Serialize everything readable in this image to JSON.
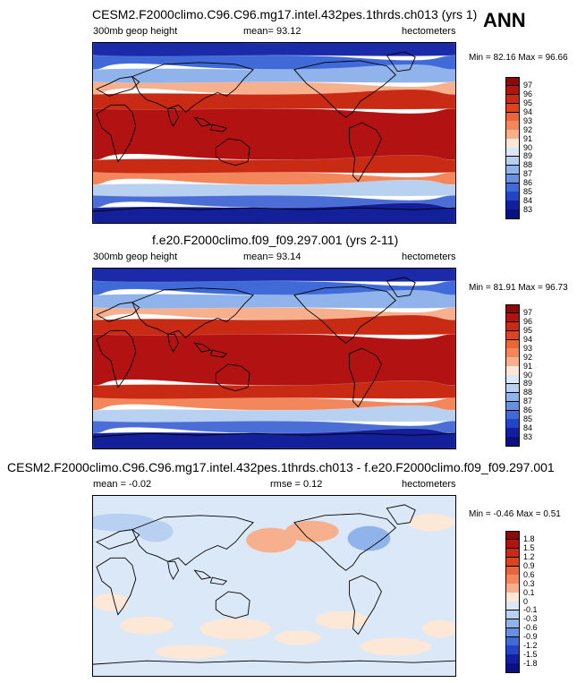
{
  "season": "ANN",
  "panels": [
    {
      "title": "CESM2.F2000climo.C96.C96.mg17.intel.432pes.1thrds.ch013 (yrs 1)",
      "left_label": "300mb geop height",
      "center_label": "mean=  93.12",
      "right_label": "hectometers",
      "minmax": "Min =  82.16 Max =  96.66",
      "colorbar_labels": [
        "97",
        "96",
        "95",
        "94",
        "93",
        "92",
        "91",
        "90",
        "89",
        "88",
        "87",
        "86",
        "85",
        "84",
        "83"
      ],
      "colorbar_colors": [
        "#8c0a0a",
        "#b21212",
        "#c82a14",
        "#dc4420",
        "#ea6638",
        "#f3865a",
        "#f7b08e",
        "#fde7d6",
        "#dbe8f7",
        "#b8d1f1",
        "#8fb3ea",
        "#6790e0",
        "#3f6ad8",
        "#2344c6",
        "#1020a0",
        "#0a1080"
      ],
      "map_colors": {
        "polar_n": "#1a2aa8",
        "high_n": "#3f6ad8",
        "mid_n": "#8fb3ea",
        "sub_n": "#f7b08e",
        "trop": "#c82a14",
        "core": "#b21212",
        "sub_s": "#f3865a",
        "mid_s": "#b8d1f1",
        "high_s": "#4a6ed6",
        "polar_s": "#14209a"
      }
    },
    {
      "title": "f.e20.F2000climo.f09_f09.297.001 (yrs 2-11)",
      "left_label": "300mb geop height",
      "center_label": "mean=  93.14",
      "right_label": "hectometers",
      "minmax": "Min =  81.91 Max =  96.73",
      "colorbar_labels": [
        "97",
        "96",
        "95",
        "94",
        "93",
        "92",
        "91",
        "90",
        "89",
        "88",
        "87",
        "86",
        "85",
        "84",
        "83"
      ],
      "colorbar_colors": [
        "#8c0a0a",
        "#b21212",
        "#c82a14",
        "#dc4420",
        "#ea6638",
        "#f3865a",
        "#f7b08e",
        "#fde7d6",
        "#dbe8f7",
        "#b8d1f1",
        "#8fb3ea",
        "#6790e0",
        "#3f6ad8",
        "#2344c6",
        "#1020a0",
        "#0a1080"
      ],
      "map_colors": {
        "polar_n": "#1a2aa8",
        "high_n": "#3f6ad8",
        "mid_n": "#8fb3ea",
        "sub_n": "#f7b08e",
        "trop": "#c82a14",
        "core": "#b21212",
        "sub_s": "#f3865a",
        "mid_s": "#b8d1f1",
        "high_s": "#4a6ed6",
        "polar_s": "#14209a"
      }
    },
    {
      "title": "CESM2.F2000climo.C96.C96.mg17.intel.432pes.1thrds.ch013 - f.e20.F2000climo.f09_f09.297.001",
      "left_label": "mean =  -0.02",
      "center_label": "rmse =  0.12",
      "right_label": "hectometers",
      "minmax": "Min =  -0.46 Max =  0.51",
      "colorbar_labels": [
        "1.8",
        "1.5",
        "1.2",
        "0.9",
        "0.6",
        "0.3",
        "0.1",
        "0",
        "-0.1",
        "-0.3",
        "-0.6",
        "-0.9",
        "-1.2",
        "-1.5",
        "-1.8"
      ],
      "colorbar_colors": [
        "#8c0a0a",
        "#b21212",
        "#c82a14",
        "#dc4420",
        "#ea6638",
        "#f3865a",
        "#f7b08e",
        "#fde7d6",
        "#dbe8f7",
        "#b8d1f1",
        "#8fb3ea",
        "#6790e0",
        "#3f6ad8",
        "#2344c6",
        "#1020a0",
        "#0a1080"
      ],
      "map_colors": {
        "base": "#dbe8f7",
        "pos": "#fde7d6",
        "pos2": "#f7b08e",
        "neg": "#b8d1f1",
        "neg2": "#8fb3ea"
      }
    }
  ],
  "chart_data": [
    {
      "type": "heatmap",
      "title": "CESM2.F2000climo.C96.C96.mg17.intel.432pes.1thrds.ch013 (yrs 1)",
      "variable": "300mb geop height",
      "units": "hectometers",
      "mean": 93.12,
      "min": 82.16,
      "max": 96.66,
      "contour_levels": [
        83,
        84,
        85,
        86,
        87,
        88,
        89,
        90,
        91,
        92,
        93,
        94,
        95,
        96,
        97
      ]
    },
    {
      "type": "heatmap",
      "title": "f.e20.F2000climo.f09_f09.297.001 (yrs 2-11)",
      "variable": "300mb geop height",
      "units": "hectometers",
      "mean": 93.14,
      "min": 81.91,
      "max": 96.73,
      "contour_levels": [
        83,
        84,
        85,
        86,
        87,
        88,
        89,
        90,
        91,
        92,
        93,
        94,
        95,
        96,
        97
      ]
    },
    {
      "type": "heatmap",
      "title": "CESM2.F2000climo.C96.C96.mg17.intel.432pes.1thrds.ch013 - f.e20.F2000climo.f09_f09.297.001",
      "units": "hectometers",
      "mean": -0.02,
      "rmse": 0.12,
      "min": -0.46,
      "max": 0.51,
      "contour_levels": [
        -1.8,
        -1.5,
        -1.2,
        -0.9,
        -0.6,
        -0.3,
        -0.1,
        0,
        0.1,
        0.3,
        0.6,
        0.9,
        1.2,
        1.5,
        1.8
      ]
    }
  ]
}
